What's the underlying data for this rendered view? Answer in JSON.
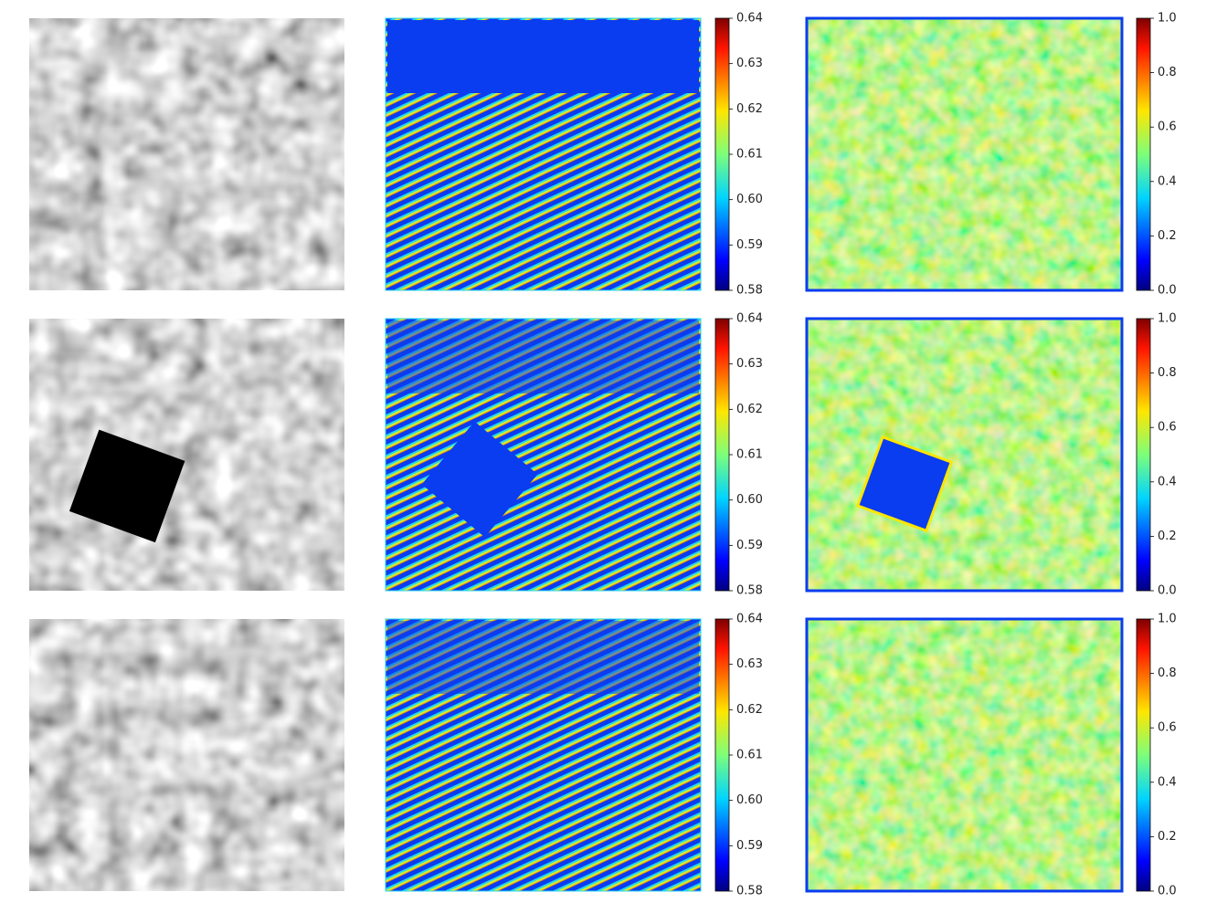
{
  "figure": {
    "rows": [
      {
        "colorbars": [
          {
            "ylim": [
              0.58,
              0.64
            ],
            "yticks": [
              0.58,
              0.59,
              {
                "value": 0.6,
                "label": "0.60"
              },
              0.61,
              0.62,
              0.63,
              0.64
            ]
          },
          {
            "ylim": [
              0,
              1
            ],
            "yticks": [
              {
                "value": 0,
                "label": "0.0"
              },
              0.2,
              0.4,
              0.6,
              0.8,
              {
                "value": 1,
                "label": "1.0"
              }
            ]
          }
        ]
      },
      {
        "colorbars": [
          {
            "ylim": [
              0.58,
              0.64
            ],
            "yticks": [
              0.58,
              0.59,
              {
                "value": 0.6,
                "label": "0.60"
              },
              0.61,
              0.62,
              0.63,
              0.64
            ]
          },
          {
            "ylim": [
              0,
              1
            ],
            "yticks": [
              {
                "value": 0,
                "label": "0.0"
              },
              0.2,
              0.4,
              0.6,
              0.8,
              {
                "value": 1,
                "label": "1.0"
              }
            ]
          }
        ]
      },
      {
        "colorbars": [
          {
            "ylim": [
              0.58,
              0.64
            ],
            "yticks": [
              0.58,
              0.59,
              {
                "value": 0.6,
                "label": "0.60"
              },
              0.61,
              0.62,
              0.63,
              0.64
            ]
          },
          {
            "ylim": [
              0,
              1
            ],
            "yticks": [
              {
                "value": 0,
                "label": "0.0"
              },
              0.2,
              0.4,
              0.6,
              0.8,
              {
                "value": 1,
                "label": "1.0"
              }
            ]
          }
        ]
      }
    ]
  }
}
